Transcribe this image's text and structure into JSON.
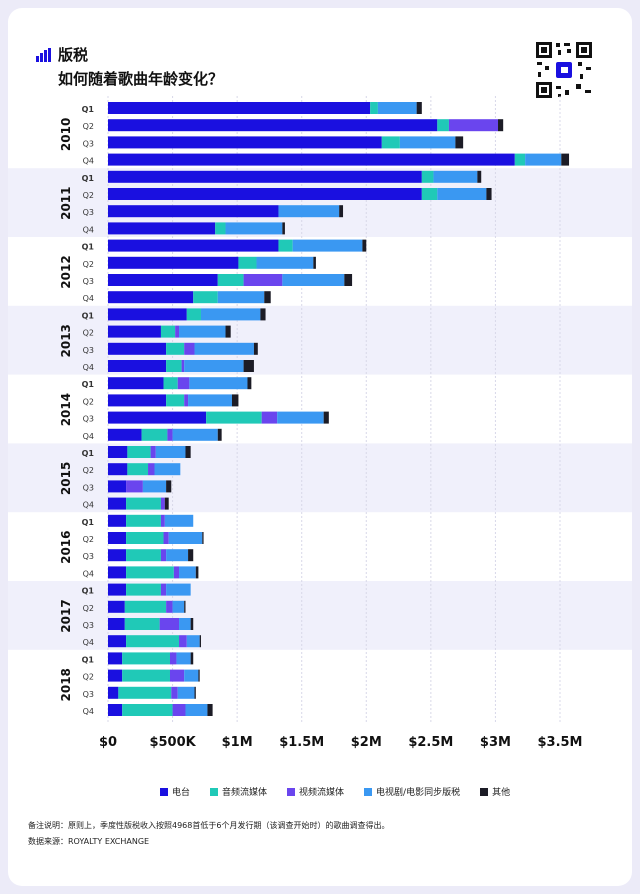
{
  "header": {
    "title": "版税",
    "subtitle": "如何随着歌曲年龄变化？"
  },
  "footer": {
    "note": "备注说明：原则上，季度性版税收入按照4968首低于6个月发行期（该调查开始时）的歌曲调查得出。",
    "source": "数据来源：ROYALTY EXCHANGE"
  },
  "colors": {
    "radio": "#1a10e0",
    "audio": "#20c9b7",
    "video": "#6a45ee",
    "tv": "#3a98f2",
    "other": "#1c1c26",
    "band": "#f0f0fb"
  },
  "chart_data": {
    "type": "bar",
    "orientation": "horizontal",
    "stacked": true,
    "xlim": [
      0,
      3500000
    ],
    "xticks": [
      0,
      500000,
      1000000,
      1500000,
      2000000,
      2500000,
      3000000,
      3500000
    ],
    "xtick_labels": [
      "$0",
      "$500K",
      "$1M",
      "$1.5M",
      "$2M",
      "$2.5M",
      "$3M",
      "$3.5M"
    ],
    "groups": [
      "2010",
      "2011",
      "2012",
      "2013",
      "2014",
      "2015",
      "2016",
      "2017",
      "2018"
    ],
    "quarters": [
      "Q1",
      "Q2",
      "Q3",
      "Q4"
    ],
    "series": [
      {
        "name": "电台",
        "key": "radio",
        "values": [
          2030000,
          2550000,
          2120000,
          3150000,
          2430000,
          2430000,
          1320000,
          830000,
          1320000,
          1010000,
          850000,
          660000,
          610000,
          410000,
          450000,
          450000,
          430000,
          450000,
          760000,
          260000,
          150000,
          150000,
          140000,
          140000,
          140000,
          140000,
          140000,
          140000,
          140000,
          130000,
          130000,
          140000,
          110000,
          110000,
          80000,
          110000
        ]
      },
      {
        "name": "音频流媒体",
        "key": "audio",
        "values": [
          60000,
          90000,
          140000,
          80000,
          90000,
          120000,
          0,
          80000,
          110000,
          140000,
          200000,
          190000,
          110000,
          110000,
          140000,
          120000,
          110000,
          140000,
          430000,
          200000,
          180000,
          160000,
          0,
          270000,
          270000,
          290000,
          270000,
          370000,
          270000,
          320000,
          270000,
          410000,
          370000,
          370000,
          410000,
          390000
        ]
      },
      {
        "name": "视频流媒体",
        "key": "video",
        "values": [
          0,
          380000,
          0,
          0,
          0,
          0,
          0,
          0,
          0,
          0,
          300000,
          0,
          0,
          30000,
          80000,
          20000,
          90000,
          30000,
          120000,
          40000,
          40000,
          50000,
          130000,
          30000,
          30000,
          40000,
          40000,
          40000,
          40000,
          50000,
          150000,
          60000,
          50000,
          110000,
          50000,
          100000
        ]
      },
      {
        "name": "电视剧/电影同步版税",
        "key": "tv",
        "values": [
          300000,
          0,
          430000,
          280000,
          340000,
          380000,
          470000,
          440000,
          540000,
          440000,
          480000,
          360000,
          460000,
          360000,
          460000,
          460000,
          450000,
          340000,
          360000,
          350000,
          230000,
          200000,
          180000,
          0,
          220000,
          260000,
          170000,
          130000,
          190000,
          90000,
          90000,
          100000,
          110000,
          110000,
          130000,
          170000
        ]
      },
      {
        "name": "其他",
        "key": "other",
        "values": [
          40000,
          40000,
          60000,
          60000,
          30000,
          40000,
          30000,
          20000,
          30000,
          20000,
          60000,
          50000,
          40000,
          40000,
          30000,
          80000,
          30000,
          50000,
          40000,
          30000,
          40000,
          0,
          40000,
          30000,
          0,
          10000,
          40000,
          20000,
          0,
          10000,
          20000,
          10000,
          20000,
          10000,
          10000,
          40000
        ]
      }
    ]
  }
}
